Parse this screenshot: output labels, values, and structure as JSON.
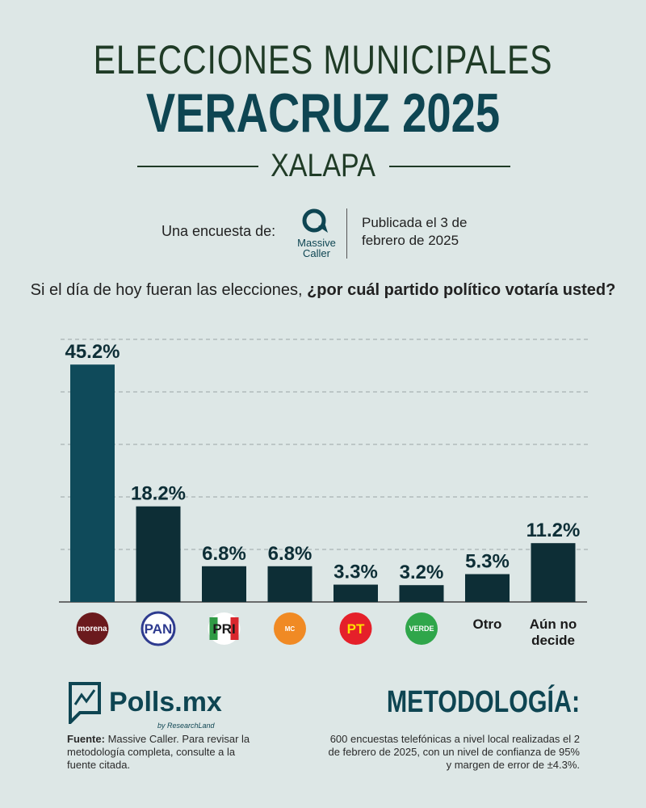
{
  "header": {
    "line1": "ELECCIONES MUNICIPALES",
    "line2": "VERACRUZ 2025",
    "line3": "XALAPA"
  },
  "survey": {
    "label": "Una encuesta de:",
    "pollster_line1": "Massive",
    "pollster_line2": "Caller",
    "published_line1": "Publicada el 3 de",
    "published_line2": "febrero de 2025"
  },
  "question": {
    "part1": "Si el día de hoy fueran las elecciones, ",
    "part2": "¿por cuál partido político votaría usted?"
  },
  "chart_data": {
    "type": "bar",
    "categories": [
      "morena",
      "PAN",
      "PRI",
      "Movimiento Ciudadano",
      "PT",
      "VERDE",
      "Otro",
      "Aún no decide"
    ],
    "values": [
      45.2,
      18.2,
      6.8,
      6.8,
      3.3,
      3.2,
      5.3,
      11.2
    ],
    "data_labels": [
      "45.2%",
      "18.2%",
      "6.8%",
      "6.8%",
      "3.3%",
      "3.2%",
      "5.3%",
      "11.2%"
    ],
    "text_categories": {
      "6": [
        "Otro"
      ],
      "7": [
        "Aún no",
        "decide"
      ]
    },
    "ylim": [
      0,
      50
    ],
    "grid": true,
    "colors": {
      "highlight": "#0f4a5a",
      "default": "#0d2e36"
    }
  },
  "party_logos": [
    {
      "text": "morena",
      "bg": "#6b1a1d",
      "fg": "#ffffff"
    },
    {
      "text": "PAN",
      "bg": "#ffffff",
      "fg": "#2e3b8f"
    },
    {
      "text": "PRI",
      "bg": "#ffffff",
      "fg": "#1a1a1a"
    },
    {
      "text": "MC",
      "bg": "#f08a24",
      "fg": "#ffffff"
    },
    {
      "text": "PT",
      "bg": "#e5202a",
      "fg": "#ffe100"
    },
    {
      "text": "VERDE",
      "bg": "#2fa64a",
      "fg": "#ffffff"
    }
  ],
  "footer": {
    "brand": "Polls.mx",
    "brand_sub": "by ResearchLand",
    "source_label": "Fuente:",
    "source_text": " Massive Caller. Para revisar la metodología completa, consulte a la fuente citada.",
    "method_title": "METODOLOGÍA:",
    "method_text": "600 encuestas telefónicas a nivel local realizadas el 2 de febrero de 2025, con un nivel de confianza de 95% y margen de error de ±4.3%."
  }
}
